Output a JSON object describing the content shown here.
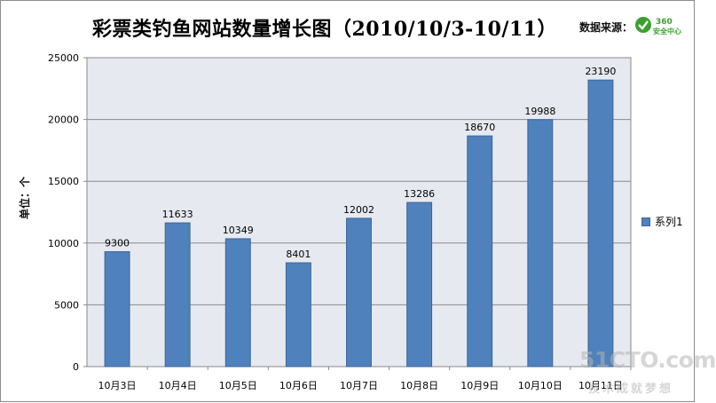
{
  "chart_data": {
    "type": "bar",
    "title": "彩票类钓鱼网站数量增长图（2010/10/3-10/11）",
    "ylabel": "单位：个",
    "xlabel": "",
    "categories": [
      "10月3日",
      "10月4日",
      "10月5日",
      "10月6日",
      "10月7日",
      "10月8日",
      "10月9日",
      "10月10日",
      "10月11日"
    ],
    "series": [
      {
        "name": "系列1",
        "values": [
          9300,
          11633,
          10349,
          8401,
          12002,
          13286,
          18670,
          19988,
          23190
        ]
      }
    ],
    "ylim": [
      0,
      25000
    ],
    "yticks": [
      0,
      5000,
      10000,
      15000,
      20000,
      25000
    ],
    "grid": true,
    "legend": "right",
    "bar_color": "#4f81bd",
    "plot_background": "#e6e9f0"
  },
  "source": {
    "label": "数据来源：",
    "logo_text": "360",
    "logo_subtext": "安全中心",
    "logo_color": "#3aa02c"
  },
  "watermark": {
    "main": "51CTO.com",
    "sub": "技术成就梦想"
  }
}
